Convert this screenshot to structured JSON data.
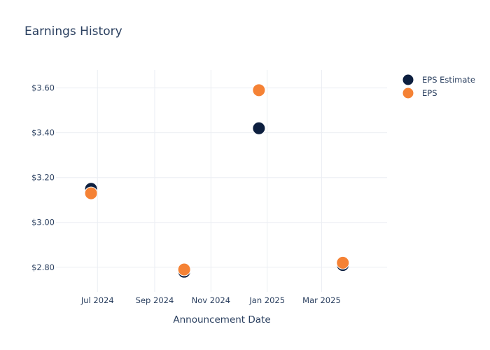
{
  "chart_data": {
    "type": "scatter",
    "title": "Earnings History",
    "xlabel": "Announcement Date",
    "ylabel": "",
    "x_ticks": [
      "Jul 2024",
      "Sep 2024",
      "Nov 2024",
      "Jan 2025",
      "Mar 2025"
    ],
    "y_ticks": [
      "$2.80",
      "$3.00",
      "$3.20",
      "$3.40",
      "$3.60"
    ],
    "xlim": [
      "2024-05-17",
      "2025-05-11"
    ],
    "ylim": [
      2.69,
      3.68
    ],
    "grid": true,
    "legend_position": "top-right",
    "series": [
      {
        "name": "EPS Estimate",
        "color": "#0d1f3f",
        "points": [
          {
            "x": "2024-06-24",
            "y": 3.15
          },
          {
            "x": "2024-10-03",
            "y": 2.78
          },
          {
            "x": "2024-12-23",
            "y": 3.42
          },
          {
            "x": "2025-03-24",
            "y": 2.81
          }
        ]
      },
      {
        "name": "EPS",
        "color": "#f58235",
        "points": [
          {
            "x": "2024-06-24",
            "y": 3.13
          },
          {
            "x": "2024-10-03",
            "y": 2.79
          },
          {
            "x": "2024-12-23",
            "y": 3.59
          },
          {
            "x": "2025-03-24",
            "y": 2.82
          }
        ]
      }
    ]
  }
}
